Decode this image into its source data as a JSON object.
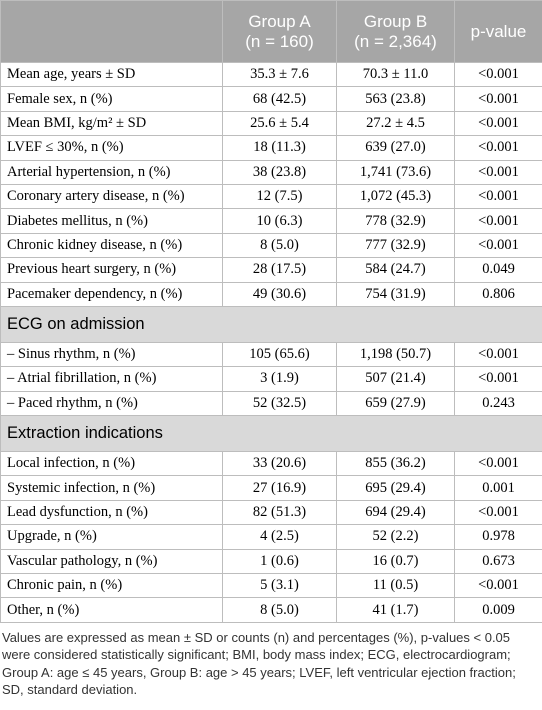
{
  "table": {
    "header": [
      {
        "name": "Group A",
        "n": "(n = 160)"
      },
      {
        "name": "Group B",
        "n": "(n = 2,364)"
      },
      {
        "name": "p-value"
      }
    ],
    "sections": [
      {
        "rows": [
          [
            "Mean age, years ± SD",
            "35.3 ± 7.6",
            "70.3 ± 11.0",
            "<0.001"
          ],
          [
            "Female sex, n (%)",
            "68 (42.5)",
            "563 (23.8)",
            "<0.001"
          ],
          [
            "Mean BMI, kg/m² ± SD",
            "25.6 ± 5.4",
            "27.2 ± 4.5",
            "<0.001"
          ],
          [
            "LVEF ≤ 30%, n (%)",
            "18 (11.3)",
            "639 (27.0)",
            "<0.001"
          ],
          [
            "Arterial hypertension, n (%)",
            "38 (23.8)",
            "1,741 (73.6)",
            "<0.001"
          ],
          [
            "Coronary artery disease, n (%)",
            "12 (7.5)",
            "1,072 (45.3)",
            "<0.001"
          ],
          [
            "Diabetes mellitus, n (%)",
            "10 (6.3)",
            "778 (32.9)",
            "<0.001"
          ],
          [
            "Chronic kidney disease, n (%)",
            "8 (5.0)",
            "777 (32.9)",
            "<0.001"
          ],
          [
            "Previous heart surgery, n (%)",
            "28 (17.5)",
            "584 (24.7)",
            "0.049"
          ],
          [
            "Pacemaker dependency, n (%)",
            "49 (30.6)",
            "754 (31.9)",
            "0.806"
          ]
        ]
      },
      {
        "title": "ECG on admission",
        "rows": [
          [
            "– Sinus rhythm, n (%)",
            "105 (65.6)",
            "1,198 (50.7)",
            "<0.001"
          ],
          [
            "– Atrial fibrillation, n (%)",
            "3 (1.9)",
            "507 (21.4)",
            "<0.001"
          ],
          [
            "– Paced rhythm, n (%)",
            "52 (32.5)",
            "659 (27.9)",
            "0.243"
          ]
        ]
      },
      {
        "title": "Extraction indications",
        "rows": [
          [
            "Local infection, n (%)",
            "33 (20.6)",
            "855 (36.2)",
            "<0.001"
          ],
          [
            "Systemic infection, n (%)",
            "27 (16.9)",
            "695 (29.4)",
            "0.001"
          ],
          [
            "Lead dysfunction, n (%)",
            "82 (51.3)",
            "694 (29.4)",
            "<0.001"
          ],
          [
            "Upgrade, n (%)",
            "4 (2.5)",
            "52 (2.2)",
            "0.978"
          ],
          [
            "Vascular pathology, n (%)",
            "1 (0.6)",
            "16 (0.7)",
            "0.673"
          ],
          [
            "Chronic pain, n (%)",
            "5 (3.1)",
            "11 (0.5)",
            "<0.001"
          ],
          [
            "Other, n (%)",
            "8 (5.0)",
            "41 (1.7)",
            "0.009"
          ]
        ]
      }
    ]
  },
  "footnote": "Values are expressed as mean ± SD or counts (n) and percentages (%), p-values < 0.05 were considered statistically significant; BMI, body mass index; ECG, electrocardiogram; Group A: age ≤ 45 years, Group B: age > 45 years; LVEF, left ventricular ejection fraction; SD, standard deviation."
}
